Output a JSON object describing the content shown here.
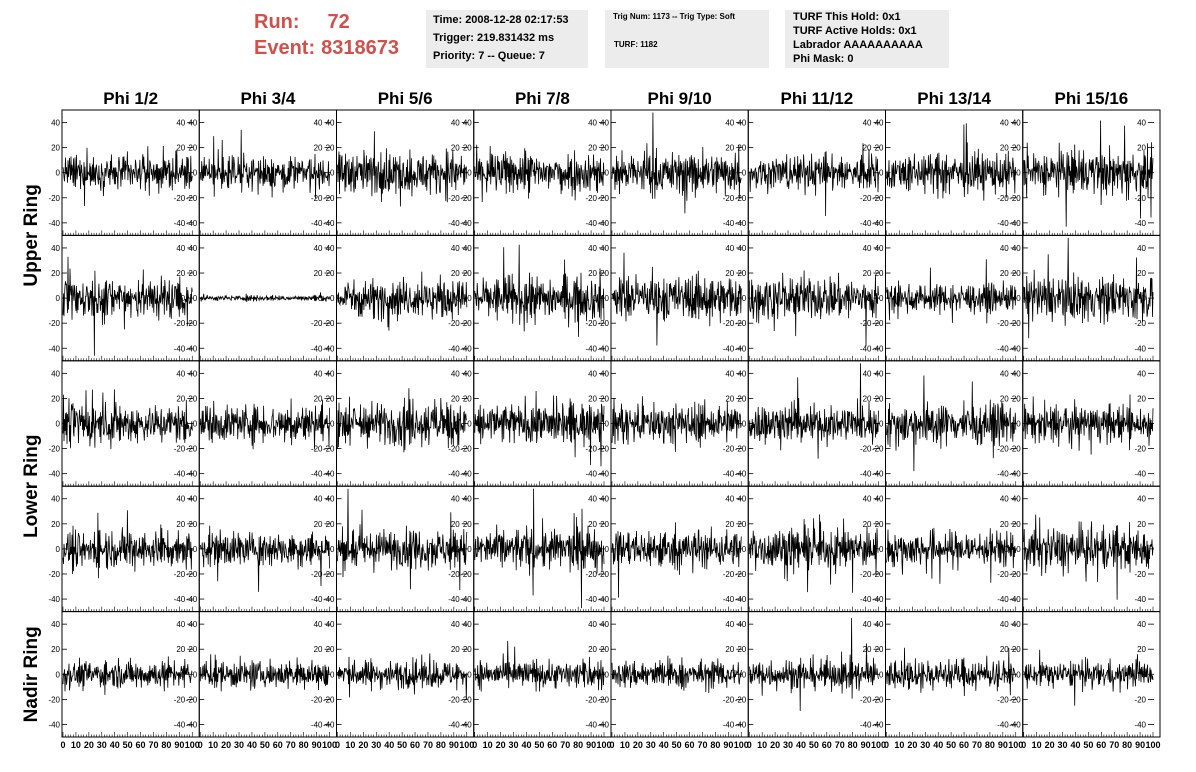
{
  "header": {
    "run_label": "Run:",
    "run_value": "72",
    "event_label": "Event:",
    "event_value": "8318673",
    "time_line": "Time: 2008-12-28 02:17:53",
    "trigger_line": "Trigger: 219.831432 ms",
    "priority_line": "Priority: 7 -- Queue: 7",
    "trig_num_line": "Trig Num: 1173 -- Trig Type: Soft",
    "turf_line": "TURF: 1182",
    "turf_this_hold": "TURF This Hold: 0x1",
    "turf_active_holds": "TURF Active Holds: 0x1",
    "labrador": "Labrador AAAAAAAAAA",
    "phi_mask": "Phi Mask: 0"
  },
  "chart_data": {
    "type": "line",
    "title": "",
    "column_labels": [
      "Phi 1/2",
      "Phi 3/4",
      "Phi 5/6",
      "Phi 7/8",
      "Phi 9/10",
      "Phi 11/12",
      "Phi 13/14",
      "Phi 15/16"
    ],
    "row_labels": [
      "Upper Ring",
      "Lower Ring",
      "Nadir Ring"
    ],
    "xlim": [
      0,
      100
    ],
    "ylim": [
      -50,
      50
    ],
    "x_ticks": [
      "0",
      "10",
      "20",
      "30",
      "40",
      "50",
      "60",
      "70",
      "80",
      "90",
      "100"
    ],
    "y_ticks": [
      "40",
      "20",
      "0",
      "-20",
      "-40"
    ],
    "samples_per_trace": 260,
    "grid": false,
    "legend": "none",
    "trace_color": "#000000",
    "trace_amplitudes": [
      [
        12,
        12,
        15,
        15,
        15,
        13,
        14,
        16
      ],
      [
        16,
        2,
        14,
        16,
        16,
        16,
        10,
        16
      ],
      [
        14,
        14,
        16,
        15,
        14,
        14,
        15,
        13
      ],
      [
        14,
        13,
        14,
        15,
        14,
        15,
        13,
        16
      ],
      [
        10,
        10,
        10,
        10,
        10,
        11,
        11,
        9
      ]
    ]
  }
}
